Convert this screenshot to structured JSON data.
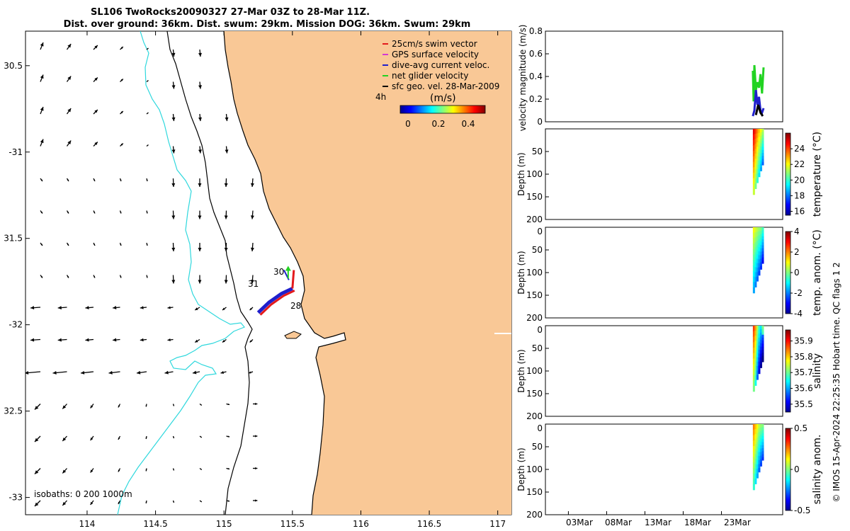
{
  "title": {
    "line1": "SL106 TwoRocks20090327 27-Mar 03Z to 28-Mar 11Z.",
    "line2": "Dist. over ground: 36km. Dist. swum: 29km. Mission DOG: 36km. Swum: 29km"
  },
  "colors": {
    "land": "#f9c896",
    "isobath_200": "#000000",
    "isobath_1000": "#2fd8dd",
    "swim_vector": "#e31a1c",
    "gps_velocity": "#d33ad3",
    "dive_avg": "#1f1fcc",
    "net_velocity": "#22d322",
    "geo_velocity": "#000000"
  },
  "chart_data": [
    {
      "type": "map",
      "name": "map",
      "xlim": [
        113.55,
        117.1
      ],
      "ylim": [
        -33.1,
        -30.3
      ],
      "x_ticks": [
        114,
        114.5,
        115,
        115.5,
        116,
        116.5,
        117
      ],
      "x_tick_labels": [
        "114",
        "114.5",
        "115",
        "115.5",
        "116",
        "116.5",
        "117"
      ],
      "y_ticks": [
        -30.5,
        -31,
        -31.5,
        -32,
        -32.5,
        -33
      ],
      "y_tick_labels": [
        "30.5",
        "-31",
        "31.5",
        "-32",
        "32.5",
        "-33"
      ],
      "isobath_label": "isobaths: 0   200  1000m",
      "scale_label": "4h",
      "legend": [
        {
          "label": "25cm/s swim vector",
          "color": "#e31a1c"
        },
        {
          "label": "GPS surface velocity",
          "color": "#d33ad3"
        },
        {
          "label": "dive-avg current veloc.",
          "color": "#1f1fcc"
        },
        {
          "label": "net glider velocity",
          "color": "#22d322"
        },
        {
          "label": "sfc geo. vel. 28-Mar-2009",
          "color": "#000000"
        }
      ],
      "colorbar": {
        "label": "(m/s)",
        "ticks": [
          0,
          0.2,
          0.4
        ],
        "tick_labels": [
          "0",
          "0.2",
          "0.4"
        ],
        "range": [
          0,
          0.5
        ]
      },
      "track_day_labels": [
        {
          "text": "30",
          "lon": 115.4,
          "lat": -31.64
        },
        {
          "text": "31",
          "lon": 115.22,
          "lat": -31.71
        },
        {
          "text": "28",
          "lon": 115.53,
          "lat": -31.82
        }
      ],
      "glider_track": [
        {
          "lon": 115.25,
          "lat": -31.93
        },
        {
          "lon": 115.33,
          "lat": -31.87
        },
        {
          "lon": 115.42,
          "lat": -31.82
        },
        {
          "lon": 115.5,
          "lat": -31.79
        }
      ]
    },
    {
      "type": "line",
      "name": "velocity-panel",
      "ylabel": "velocity magnitude (m/s)",
      "ylim": [
        0,
        0.8
      ],
      "y_ticks": [
        0,
        0.2,
        0.4,
        0.6,
        0.8
      ],
      "y_tick_labels": [
        "0",
        "0.2",
        "0.4",
        "0.6",
        "0.8"
      ],
      "x_range_days": [
        0,
        31
      ],
      "series": [
        {
          "color": "#22d322",
          "x": [
            27.1,
            27.2,
            27.3,
            27.5,
            27.7,
            27.9,
            28.1,
            28.3,
            28.5
          ],
          "values": [
            0.45,
            0.18,
            0.5,
            0.28,
            0.35,
            0.3,
            0.42,
            0.25,
            0.48
          ]
        },
        {
          "color": "#1f1fcc",
          "x": [
            27.1,
            27.3,
            27.5,
            27.7,
            27.9,
            28.1,
            28.3,
            28.5
          ],
          "values": [
            0.05,
            0.1,
            0.28,
            0.15,
            0.22,
            0.1,
            0.08,
            0.12
          ]
        },
        {
          "color": "#000000",
          "x": [
            27.5,
            27.8,
            28.1,
            28.4
          ],
          "values": [
            0.06,
            0.15,
            0.08,
            0.05
          ]
        }
      ]
    },
    {
      "type": "heatmap",
      "name": "temperature-panel",
      "ylabel": "Depth (m)",
      "colorbar_label": "temperature (°C)",
      "cb_ticks": [
        16,
        18,
        20,
        22,
        24
      ],
      "cb_range": [
        15.5,
        26
      ],
      "y_ticks": [
        50,
        100,
        150,
        200
      ],
      "y_tick_labels": [
        "50",
        "100",
        "150",
        "200"
      ],
      "max_depth": 145
    },
    {
      "type": "heatmap",
      "name": "temp-anom-panel",
      "ylabel": "Depth (m)",
      "colorbar_label": "temp. anom. (°C)",
      "cb_ticks": [
        -4,
        -2,
        0,
        2,
        4
      ],
      "cb_range": [
        -4,
        4
      ],
      "y_ticks": [
        0,
        50,
        100,
        150,
        200
      ],
      "y_tick_labels": [
        "0",
        "50",
        "100",
        "150",
        "200"
      ],
      "max_depth": 145
    },
    {
      "type": "heatmap",
      "name": "salinity-panel",
      "ylabel": "Depth (m)",
      "colorbar_label": "salinity",
      "cb_ticks": [
        35.5,
        35.6,
        35.7,
        35.8,
        35.9
      ],
      "cb_range": [
        35.45,
        35.97
      ],
      "y_ticks": [
        0,
        50,
        100,
        150,
        200
      ],
      "y_tick_labels": [
        "0",
        "50",
        "100",
        "150",
        "200"
      ],
      "max_depth": 145
    },
    {
      "type": "heatmap",
      "name": "salinity-anom-panel",
      "ylabel": "Depth (m)",
      "colorbar_label": "salinity anom.",
      "cb_ticks": [
        -0.5,
        0,
        0.5
      ],
      "cb_range": [
        -0.5,
        0.5
      ],
      "y_ticks": [
        0,
        50,
        100,
        150,
        200
      ],
      "y_tick_labels": [
        "0",
        "50",
        "100",
        "150",
        "200"
      ],
      "max_depth": 145,
      "x_tick_labels": [
        "03Mar",
        "08Mar",
        "13Mar",
        "18Mar",
        "23Mar"
      ]
    }
  ],
  "footer_note": "© IMOS 15-Apr-2024 22:25:35 Hobart time. QC flags 1  2"
}
